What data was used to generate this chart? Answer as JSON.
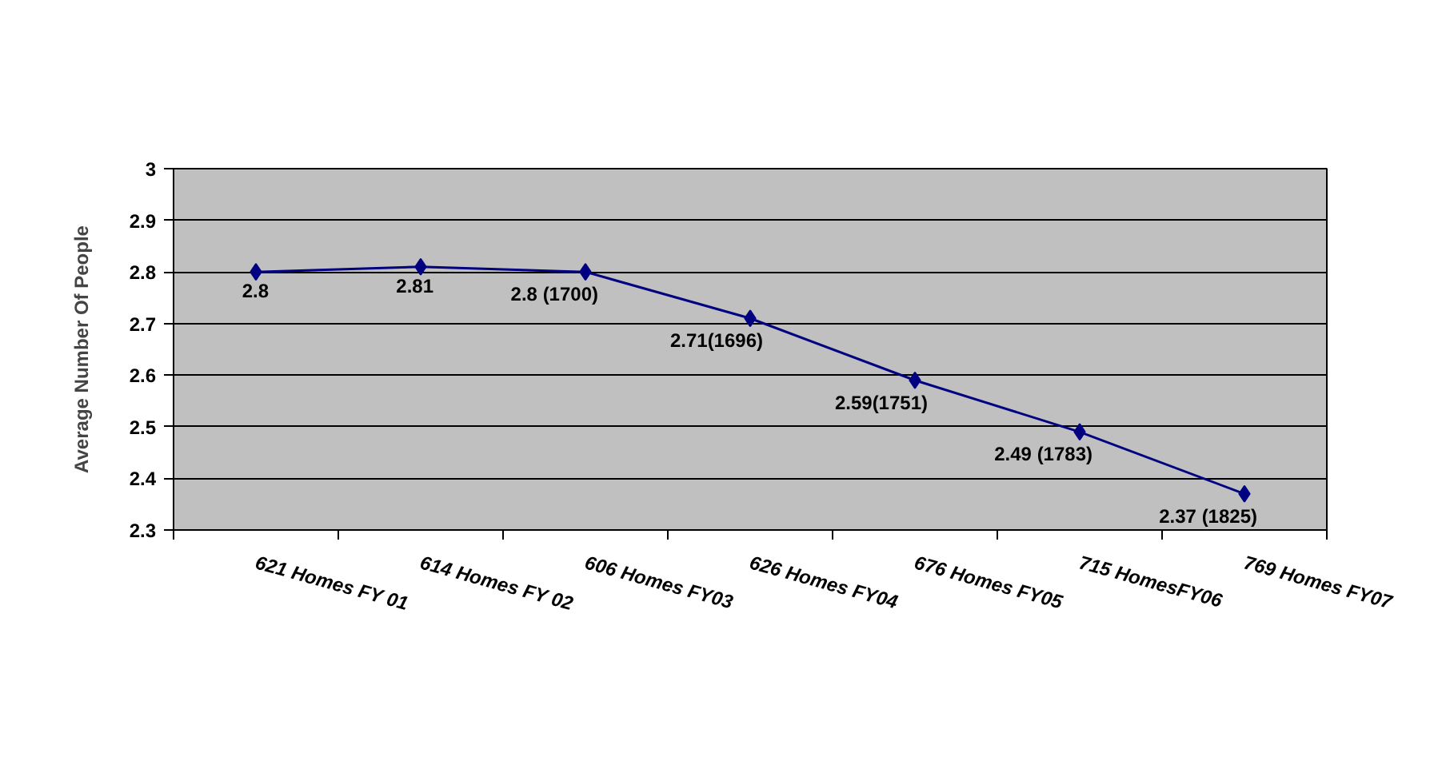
{
  "chart_data": {
    "type": "line",
    "ylabel": "Average Number Of People",
    "categories": [
      "621 Homes FY 01",
      "614 Homes  FY 02",
      "606 Homes  FY03",
      "626 Homes FY04",
      "676  Homes FY05",
      "715 HomesFY06",
      "769 Homes FY07"
    ],
    "series": [
      {
        "color": "#000080",
        "values": [
          2.8,
          2.81,
          2.8,
          2.71,
          2.59,
          2.49,
          2.37
        ],
        "value_labels": [
          "2.8",
          "2.81",
          "2.8 (1700)",
          "2.71(1696)",
          "2.59(1751)",
          "2.49 (1783)",
          "2.37 (1825)"
        ]
      }
    ],
    "ylim": [
      2.3,
      3
    ],
    "yticks": [
      2.3,
      2.4,
      2.5,
      2.6,
      2.7,
      2.8,
      2.9,
      3
    ],
    "grid": "y",
    "marker": "diamond",
    "line_style": "solid"
  }
}
